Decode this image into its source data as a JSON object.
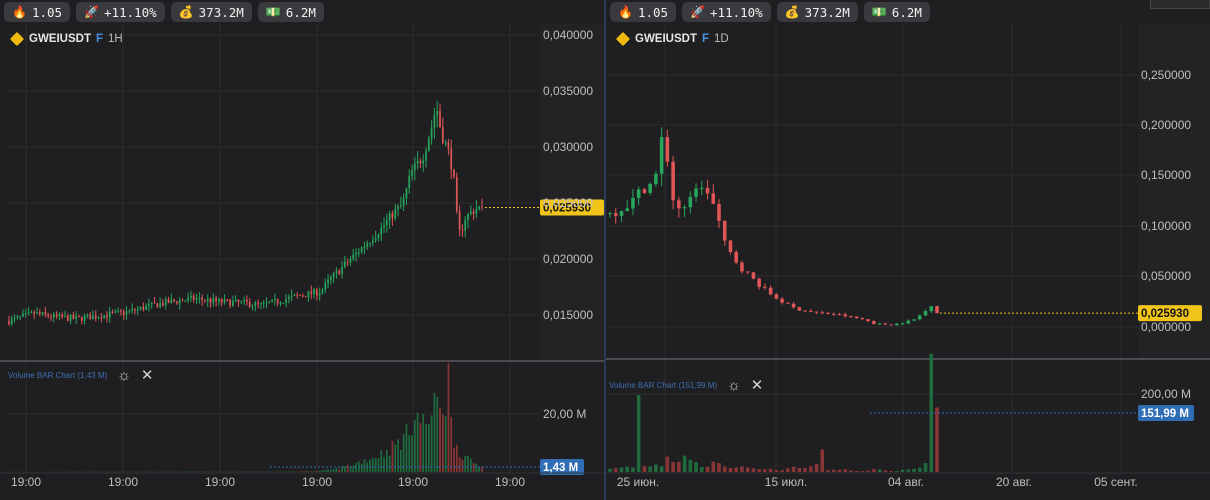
{
  "stats": [
    {
      "icon": "fire-icon",
      "glyph": "🔥",
      "value": "1.05"
    },
    {
      "icon": "rocket-icon",
      "glyph": "🚀",
      "value": "+11.10%"
    },
    {
      "icon": "money-bag-icon",
      "glyph": "💰",
      "value": "373.2M"
    },
    {
      "icon": "cash-icon",
      "glyph": "💵",
      "value": "6.2M"
    }
  ],
  "colors": {
    "up": "#26a65b",
    "down": "#e05555",
    "price_tag": "#f0c419",
    "vol_tag": "#2f6db5",
    "axis_text": "#bfbfbf",
    "grid": "#2c2c30"
  },
  "panes": [
    {
      "symbol": "GWEIUSDT",
      "contract": "F",
      "timeframe": "1H",
      "volume_title": "Volume BAR Chart (1,43 M)",
      "price_tag": "0,025930",
      "volume_tag": "1,43 M",
      "price_ticks": [
        "0,040000",
        "0,035000",
        "0,030000",
        "0,025000",
        "0,020000",
        "0,015000"
      ],
      "volume_ticks": [
        "20,00 M"
      ],
      "time_labels": [
        "19:00",
        "19:00",
        "19:00",
        "19:00",
        "19:00",
        "19:00"
      ]
    },
    {
      "symbol": "GWEIUSDT",
      "contract": "F",
      "timeframe": "1D",
      "volume_title": "Volume BAR Chart (151,99 M)",
      "price_tag": "0,025930",
      "volume_tag": "151,99 M",
      "price_ticks": [
        "0,250000",
        "0,200000",
        "0,150000",
        "0,100000",
        "0,050000",
        "0,000000"
      ],
      "volume_ticks": [
        "200,00 M"
      ],
      "time_labels": [
        "25 июн.",
        "15 июл.",
        "04 авг.",
        "20 авг.",
        "05 сент."
      ]
    }
  ],
  "chart_data": [
    {
      "type": "candlestick",
      "title": "GWEIUSDT F 1H",
      "ylim": [
        0.0125,
        0.0423
      ],
      "vol_max": 28.5,
      "close_last": 0.02593,
      "path": [
        [
          0,
          0.0158
        ],
        [
          15,
          0.0165
        ],
        [
          25,
          0.0162
        ],
        [
          40,
          0.016
        ],
        [
          55,
          0.0163
        ],
        [
          70,
          0.0166
        ],
        [
          85,
          0.0172
        ],
        [
          95,
          0.0175
        ],
        [
          110,
          0.0178
        ],
        [
          125,
          0.0175
        ],
        [
          140,
          0.0174
        ],
        [
          150,
          0.0172
        ],
        [
          160,
          0.0176
        ],
        [
          170,
          0.018
        ],
        [
          180,
          0.0183
        ],
        [
          185,
          0.0185
        ],
        [
          190,
          0.0195
        ],
        [
          200,
          0.021
        ],
        [
          210,
          0.0225
        ],
        [
          220,
          0.024
        ],
        [
          228,
          0.0255
        ],
        [
          233,
          0.0262
        ],
        [
          238,
          0.029
        ],
        [
          245,
          0.0305
        ],
        [
          250,
          0.033
        ],
        [
          253,
          0.035
        ],
        [
          256,
          0.0325
        ],
        [
          260,
          0.031
        ],
        [
          263,
          0.029
        ],
        [
          266,
          0.0235
        ],
        [
          268,
          0.024
        ],
        [
          270,
          0.025
        ],
        [
          276,
          0.0258
        ],
        [
          280,
          0.02593
        ]
      ],
      "volume_path": [
        [
          0,
          0.05
        ],
        [
          170,
          0.12
        ],
        [
          185,
          0.35
        ],
        [
          195,
          1.0
        ],
        [
          205,
          2.5
        ],
        [
          215,
          4.2
        ],
        [
          225,
          6.5
        ],
        [
          235,
          10.5
        ],
        [
          240,
          17.5
        ],
        [
          245,
          14.0
        ],
        [
          250,
          16.0
        ],
        [
          255,
          22.0
        ],
        [
          258,
          19.0
        ],
        [
          260,
          28.5
        ],
        [
          262,
          12.0
        ],
        [
          265,
          8.0
        ],
        [
          268,
          5.0
        ],
        [
          272,
          3.5
        ],
        [
          280,
          1.43
        ]
      ],
      "n": 170,
      "x_labels": [
        "19:00",
        "19:00",
        "19:00",
        "19:00",
        "19:00",
        "19:00"
      ]
    },
    {
      "type": "candlestick",
      "title": "GWEIUSDT F 1D",
      "ylim": [
        -0.0145,
        0.299
      ],
      "vol_max": 245,
      "close_last": 0.02593,
      "path": [
        [
          0,
          0.12
        ],
        [
          2,
          0.125
        ],
        [
          4,
          0.132
        ],
        [
          6,
          0.145
        ],
        [
          8,
          0.15
        ],
        [
          9,
          0.19
        ],
        [
          10,
          0.18
        ],
        [
          11,
          0.135
        ],
        [
          13,
          0.12
        ],
        [
          14,
          0.128
        ],
        [
          15,
          0.15
        ],
        [
          16,
          0.14
        ],
        [
          17,
          0.145
        ],
        [
          19,
          0.12
        ],
        [
          20,
          0.095
        ],
        [
          21,
          0.085
        ],
        [
          22,
          0.078
        ],
        [
          23,
          0.07
        ],
        [
          25,
          0.06
        ],
        [
          27,
          0.05
        ],
        [
          29,
          0.042
        ],
        [
          31,
          0.035
        ],
        [
          33,
          0.03
        ],
        [
          35,
          0.028
        ],
        [
          37,
          0.026
        ],
        [
          40,
          0.025
        ],
        [
          43,
          0.022
        ],
        [
          45,
          0.02
        ],
        [
          47,
          0.016
        ],
        [
          50,
          0.015
        ],
        [
          52,
          0.017
        ],
        [
          54,
          0.02
        ],
        [
          56,
          0.028
        ],
        [
          57,
          0.034
        ],
        [
          58,
          0.026
        ]
      ],
      "volume_path": [
        [
          0,
          8
        ],
        [
          2,
          12
        ],
        [
          4,
          10
        ],
        [
          5,
          195
        ],
        [
          6,
          20
        ],
        [
          7,
          15
        ],
        [
          9,
          18
        ],
        [
          10,
          36
        ],
        [
          11,
          20
        ],
        [
          12,
          22
        ],
        [
          13,
          32
        ],
        [
          14,
          24
        ],
        [
          16,
          18
        ],
        [
          18,
          20
        ],
        [
          20,
          15
        ],
        [
          22,
          12
        ],
        [
          25,
          10
        ],
        [
          28,
          8
        ],
        [
          30,
          6
        ],
        [
          32,
          10
        ],
        [
          34,
          12
        ],
        [
          35,
          14
        ],
        [
          36,
          18
        ],
        [
          37,
          72
        ],
        [
          38,
          6
        ],
        [
          39,
          5
        ],
        [
          40,
          8
        ],
        [
          42,
          4
        ],
        [
          44,
          3
        ],
        [
          46,
          6
        ],
        [
          48,
          4
        ],
        [
          50,
          3
        ],
        [
          52,
          6
        ],
        [
          54,
          10
        ],
        [
          55,
          18
        ],
        [
          56,
          225
        ],
        [
          57,
          151.99
        ]
      ],
      "n": 58,
      "x_labels": [
        "25 июн.",
        "15 июл.",
        "04 авг.",
        "20 авг.",
        "05 сент."
      ]
    }
  ]
}
